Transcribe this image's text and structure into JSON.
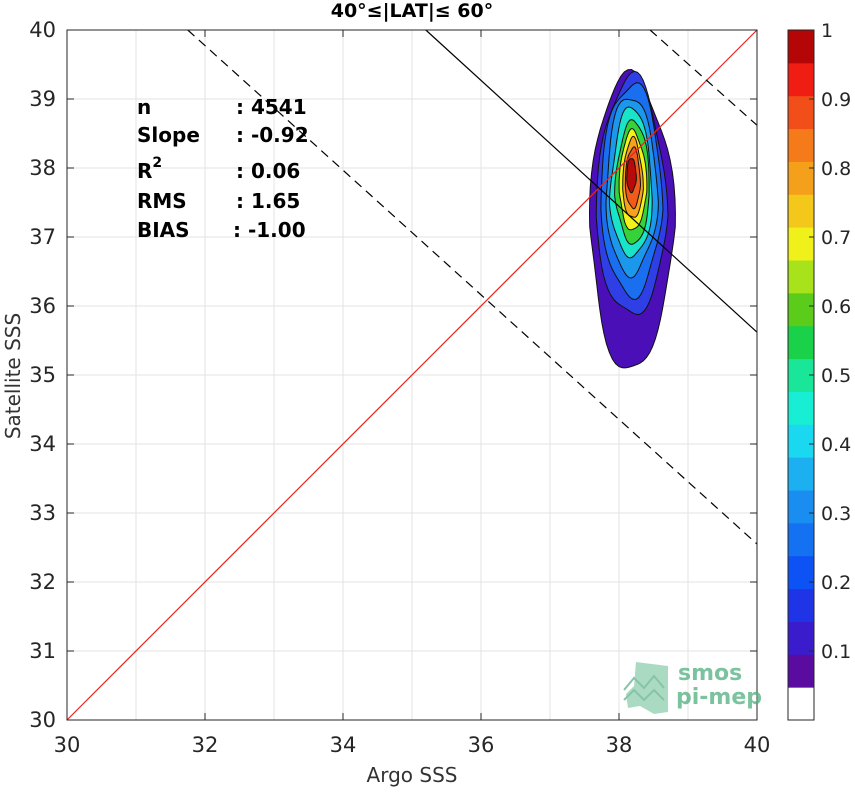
{
  "chart_data": {
    "type": "heatmap",
    "title": "40°≤|LAT|≤ 60°",
    "xlabel": "Argo SSS",
    "ylabel": "Satellite SSS",
    "xlim": [
      30,
      40
    ],
    "ylim": [
      30,
      40
    ],
    "xticks": [
      30,
      32,
      34,
      36,
      38,
      40
    ],
    "yticks": [
      30,
      31,
      32,
      33,
      34,
      35,
      36,
      37,
      38,
      39,
      40
    ],
    "grid": true,
    "stats": [
      {
        "label": "n",
        "value": ": 4541"
      },
      {
        "label": "Slope",
        "value": ": -0.92"
      },
      {
        "label": "R",
        "sup": "2",
        "value": ": 0.06"
      },
      {
        "label": "RMS",
        "value": ": 1.65"
      },
      {
        "label": "BIAS",
        "value": ": -1.00"
      }
    ],
    "reference_lines": [
      {
        "name": "one-to-one",
        "color": "#e8261c",
        "style": "solid",
        "x": [
          30,
          40
        ],
        "y": [
          30,
          40
        ]
      },
      {
        "name": "regression",
        "color": "#000000",
        "style": "solid",
        "x": [
          35.2,
          40
        ],
        "y": [
          40,
          35.62
        ]
      },
      {
        "name": "regression-upper",
        "color": "#000000",
        "style": "dashed",
        "x": [
          38.45,
          40
        ],
        "y": [
          40,
          38.62
        ]
      },
      {
        "name": "regression-lower",
        "color": "#000000",
        "style": "dashed",
        "x": [
          31.75,
          40
        ],
        "y": [
          40,
          32.55
        ]
      }
    ],
    "density_center": {
      "x": 38.2,
      "y": 37.7
    },
    "contours": [
      {
        "level": 0.05,
        "color": "#4b0fb8",
        "cx": 38.18,
        "cy": 37.15,
        "rx": 0.62,
        "ry_up": 2.2,
        "ry_down": 2.1
      },
      {
        "level": 0.15,
        "color": "#2e3fe6",
        "cx": 38.18,
        "cy": 37.3,
        "rx": 0.52,
        "ry_up": 2.0,
        "ry_down": 1.45
      },
      {
        "level": 0.25,
        "color": "#1a6ef0",
        "cx": 38.18,
        "cy": 37.4,
        "rx": 0.45,
        "ry_up": 1.85,
        "ry_down": 1.25
      },
      {
        "level": 0.35,
        "color": "#1b98ec",
        "cx": 38.18,
        "cy": 37.5,
        "rx": 0.38,
        "ry_up": 1.55,
        "ry_down": 1.05
      },
      {
        "level": 0.45,
        "color": "#19e3c8",
        "cx": 38.18,
        "cy": 37.55,
        "rx": 0.31,
        "ry_up": 1.32,
        "ry_down": 0.85
      },
      {
        "level": 0.55,
        "color": "#36d23a",
        "cx": 38.2,
        "cy": 37.6,
        "rx": 0.25,
        "ry_up": 1.1,
        "ry_down": 0.7
      },
      {
        "level": 0.65,
        "color": "#f2f21a",
        "cx": 38.2,
        "cy": 37.65,
        "rx": 0.2,
        "ry_up": 0.9,
        "ry_down": 0.55
      },
      {
        "level": 0.75,
        "color": "#f7a21a",
        "cx": 38.2,
        "cy": 37.7,
        "rx": 0.15,
        "ry_up": 0.72,
        "ry_down": 0.43
      },
      {
        "level": 0.85,
        "color": "#f05a1a",
        "cx": 38.2,
        "cy": 37.75,
        "rx": 0.11,
        "ry_up": 0.55,
        "ry_down": 0.33
      },
      {
        "level": 0.95,
        "color": "#b80a0a",
        "cx": 38.18,
        "cy": 37.85,
        "rx": 0.07,
        "ry_up": 0.3,
        "ry_down": 0.2
      }
    ],
    "colorbar": {
      "min": 0,
      "max": 1,
      "ticks": [
        "0.1",
        "0.2",
        "0.3",
        "0.4",
        "0.5",
        "0.6",
        "0.7",
        "0.8",
        "0.9",
        "1"
      ],
      "tick_values": [
        0.1,
        0.2,
        0.3,
        0.4,
        0.5,
        0.6,
        0.7,
        0.8,
        0.9,
        1.0
      ],
      "colors": [
        "#ffffff",
        "#5a0ca0",
        "#3b1ccc",
        "#1f34e6",
        "#0d52f4",
        "#1471f2",
        "#1a8ef0",
        "#1cb0f0",
        "#1ad8f0",
        "#18eed4",
        "#1ae69a",
        "#1ad24a",
        "#5ccc1a",
        "#a8e21a",
        "#f0f01a",
        "#f4c81a",
        "#f5a01a",
        "#f57a1a",
        "#f24e1a",
        "#f01e12",
        "#b40606"
      ]
    }
  },
  "watermark": {
    "line1": "smos",
    "line2": "pi-mep",
    "color": "#2e9a5a"
  }
}
